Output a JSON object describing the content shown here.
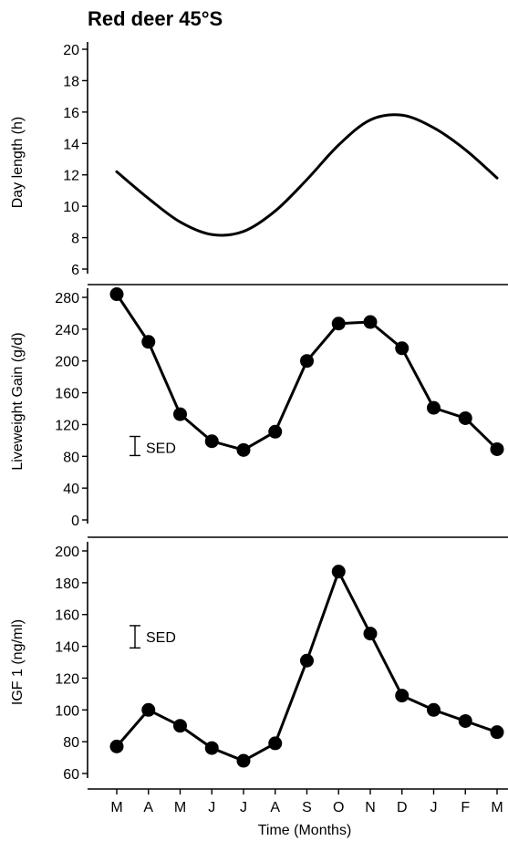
{
  "title": "Red deer 45°S",
  "chart_data": [
    {
      "type": "line",
      "ylabel": "Day length (h)",
      "ylim": [
        6,
        20
      ],
      "yticks": [
        6,
        8,
        10,
        12,
        14,
        16,
        18,
        20
      ],
      "x": [
        0,
        1,
        2,
        3,
        4,
        5,
        6,
        7,
        8,
        9,
        10,
        11,
        12
      ],
      "values": [
        12.2,
        10.5,
        9.0,
        8.2,
        8.4,
        9.7,
        11.7,
        13.9,
        15.5,
        15.8,
        15.0,
        13.6,
        11.8
      ],
      "markers": false
    },
    {
      "type": "line",
      "ylabel": "Liveweight Gain (g/d)",
      "ylim": [
        0,
        280
      ],
      "yticks": [
        0,
        40,
        80,
        120,
        160,
        200,
        240,
        280
      ],
      "x": [
        0,
        1,
        2,
        3,
        4,
        5,
        6,
        7,
        8,
        9,
        10,
        11,
        12
      ],
      "values": [
        284,
        224,
        133,
        99,
        88,
        111,
        200,
        247,
        249,
        216,
        141,
        128,
        89
      ],
      "markers": true,
      "sed": {
        "label": "SED",
        "center": 91,
        "low": 81,
        "high": 105
      }
    },
    {
      "type": "line",
      "ylabel": "IGF 1  (ng/ml)",
      "ylim": [
        60,
        200
      ],
      "yticks": [
        60,
        80,
        100,
        120,
        140,
        160,
        180,
        200
      ],
      "x": [
        0,
        1,
        2,
        3,
        4,
        5,
        6,
        7,
        8,
        9,
        10,
        11,
        12
      ],
      "values": [
        77,
        100,
        90,
        76,
        68,
        79,
        131,
        187,
        148,
        109,
        100,
        93,
        86
      ],
      "markers": true,
      "sed": {
        "label": "SED",
        "center": 146,
        "low": 139,
        "high": 153
      }
    }
  ],
  "x_axis": {
    "tick_labels": [
      "M",
      "A",
      "M",
      "J",
      "J",
      "A",
      "S",
      "O",
      "N",
      "D",
      "J",
      "F",
      "M"
    ],
    "label": "Time (Months)"
  }
}
